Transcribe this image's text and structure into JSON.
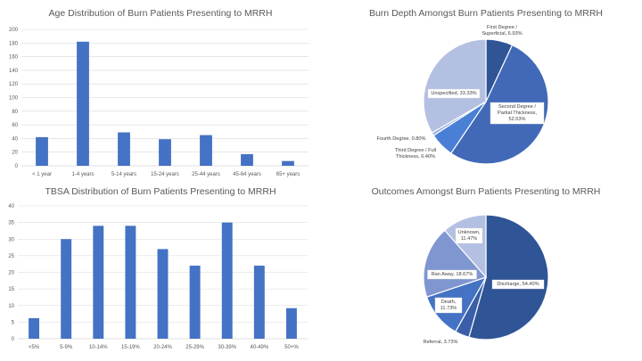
{
  "chart_data": [
    {
      "id": "age",
      "type": "bar",
      "title": "Age Distribution of Burn Patients Presenting to MRRH",
      "categories": [
        "< 1 year",
        "1-4 years",
        "5-14 years",
        "15-24 years",
        "25-44 years",
        "45-64 years",
        "65+ years"
      ],
      "values": [
        42,
        182,
        49,
        39,
        45,
        17,
        7
      ],
      "ylim": [
        0,
        200
      ],
      "yticks": [
        0,
        20,
        40,
        60,
        80,
        100,
        120,
        140,
        160,
        180,
        200
      ],
      "grid": true,
      "bar_color": "#4472c4"
    },
    {
      "id": "tbsa",
      "type": "bar",
      "title": "TBSA Distribution of Burn Patients Presenting to MRRH",
      "categories": [
        "<5%",
        "5-9%",
        "10-14%",
        "15-19%",
        "20-24%",
        "25-29%",
        "30-39%",
        "40-49%",
        "50+%"
      ],
      "values": [
        6.2,
        30,
        34,
        34,
        27,
        22,
        35,
        22,
        9.2
      ],
      "ylim": [
        0,
        40
      ],
      "yticks": [
        0,
        5,
        10,
        15,
        20,
        25,
        30,
        35,
        40
      ],
      "grid": true,
      "bar_color": "#4472c4"
    },
    {
      "id": "depth",
      "type": "pie",
      "title": "Burn Depth Amongst Burn Patients Presenting to MRRH",
      "slices": [
        {
          "label": "First Degree / Superficial, 6.93%",
          "value": 6.93,
          "color": "#2f5597"
        },
        {
          "label": "Second Degree / Partial Thickness, 52.53%",
          "value": 52.53,
          "color": "#4169b8"
        },
        {
          "label": "Third Degree / Full Thickness, 6.40%",
          "value": 6.4,
          "color": "#4a7fd6"
        },
        {
          "label": "Fourth Degree, 0.80%",
          "value": 0.8,
          "color": "#8faadc"
        },
        {
          "label": "Unspecified, 33.33%",
          "value": 33.33,
          "color": "#b4c0e2"
        }
      ]
    },
    {
      "id": "outcome",
      "type": "pie",
      "title": "Outcomes Amongst Burn Patients Presenting to MRRH",
      "slices": [
        {
          "label": "Discharge, 54.40%",
          "value": 54.4,
          "color": "#2f5597"
        },
        {
          "label": "Referral, 3.73%",
          "value": 3.73,
          "color": "#3a5ea8"
        },
        {
          "label": "Death, 11.73%",
          "value": 11.73,
          "color": "#4472c4"
        },
        {
          "label": "Ran Away, 18.67%",
          "value": 18.67,
          "color": "#7f96d0"
        },
        {
          "label": "Unknown, 11.47%",
          "value": 11.47,
          "color": "#b4c0e2"
        }
      ]
    }
  ]
}
